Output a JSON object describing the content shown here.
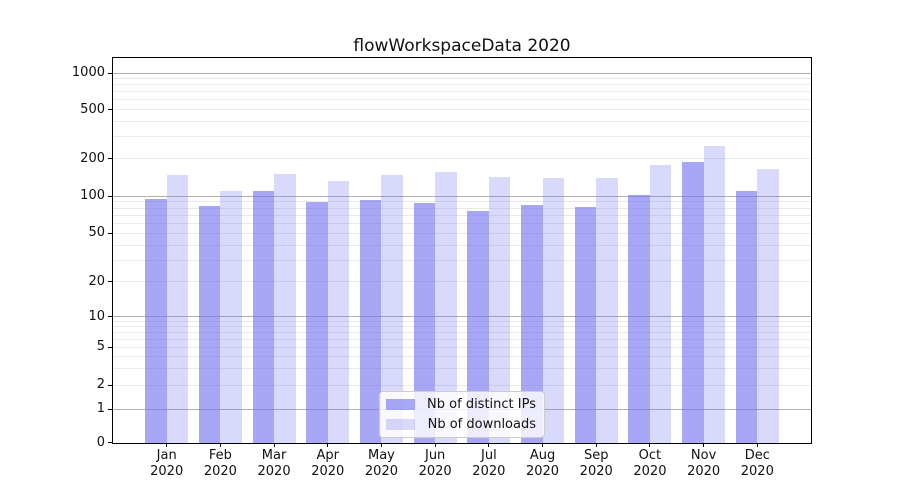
{
  "title": "flowWorkspaceData 2020",
  "chart_data": {
    "type": "bar",
    "title": "flowWorkspaceData 2020",
    "categories": [
      "Jan 2020",
      "Feb 2020",
      "Mar 2020",
      "Apr 2020",
      "May 2020",
      "Jun 2020",
      "Jul 2020",
      "Aug 2020",
      "Sep 2020",
      "Oct 2020",
      "Nov 2020",
      "Dec 2020"
    ],
    "series": [
      {
        "name": "Nb of distinct IPs",
        "values": [
          94,
          83,
          110,
          90,
          92,
          87,
          76,
          85,
          82,
          102,
          187,
          110
        ]
      },
      {
        "name": "Nb of downloads",
        "values": [
          148,
          110,
          151,
          133,
          148,
          157,
          143,
          139,
          140,
          178,
          255,
          166
        ]
      }
    ],
    "xlabel": "",
    "ylabel": "",
    "yscale": "symlog",
    "yticks": [
      0,
      1,
      2,
      5,
      10,
      20,
      50,
      100,
      200,
      500,
      1000
    ],
    "ylim": [
      0,
      1400
    ],
    "grid": "on",
    "legend_position": "lower-center-inside"
  },
  "colors": {
    "bar_dark": "rgba(120,120,240,0.65)",
    "bar_light": "rgba(120,120,240,0.28)",
    "grid_major": "#b0b0b0",
    "grid_minor": "#e9e9e9",
    "spine": "#000000",
    "text": "#111111"
  }
}
